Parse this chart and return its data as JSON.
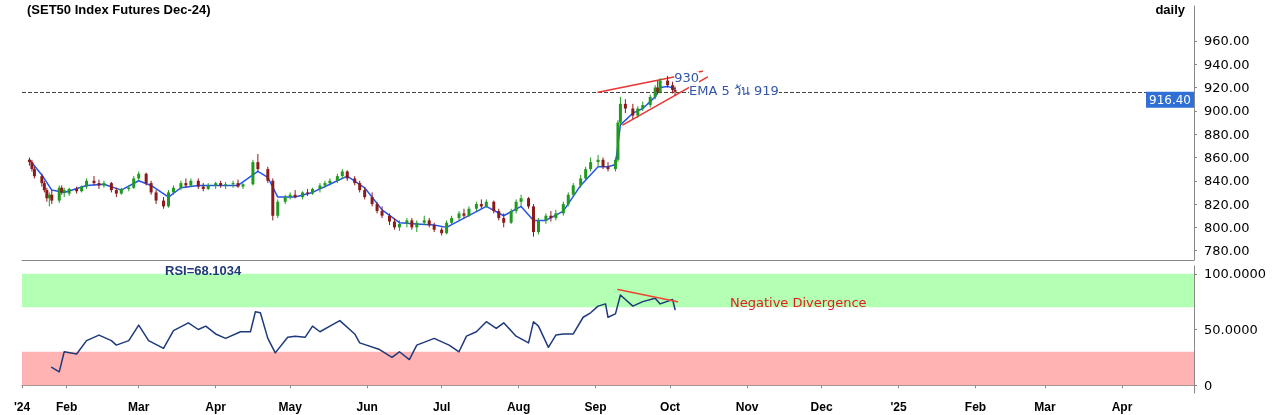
{
  "chart_data": [
    {
      "type": "candlestick",
      "title": "(SET50 Index Futures Dec-24)",
      "subtitle": "daily",
      "xlim": [
        "2024-01-14",
        "2025-04-30"
      ],
      "ylim": [
        772,
        990
      ],
      "yticks": [
        {
          "value": 780,
          "label": "780.00"
        },
        {
          "value": 800,
          "label": "800.00"
        },
        {
          "value": 820,
          "label": "820.00"
        },
        {
          "value": 840,
          "label": "840.00"
        },
        {
          "value": 860,
          "label": "860.00"
        },
        {
          "value": 880,
          "label": "880.00"
        },
        {
          "value": 900,
          "label": "900.00"
        },
        {
          "value": 920,
          "label": "920.00"
        },
        {
          "value": 940,
          "label": "940.00"
        },
        {
          "value": 960,
          "label": "960.00"
        }
      ],
      "tick_labels": "y",
      "grid": false,
      "marker": "none",
      "ref_lines": [
        {
          "axis": "y",
          "value": 916.4,
          "label": "916.40",
          "color": "#444444",
          "line_style": "dashed"
        }
      ],
      "annotations": [
        {
          "text": "930",
          "x": "2024-09-27",
          "y": 930
        },
        {
          "text": "EMA 5 วัน 919",
          "x": "2024-10-03",
          "y": 919
        }
      ],
      "series": [
        {
          "colors": [
            "#8b1a1a",
            "#8b1a1a",
            "#8b1a1a",
            "#8b1a1a",
            "#8b1a1a",
            "#8b1a1a",
            "#1f9a1f",
            "#8b1a1a",
            "#1f9a1f",
            "#8b1a1a",
            "#1f9a1f",
            "#1f9a1f",
            "#8b1a1a",
            "#1f9a1f",
            "#1f9a1f",
            "#8b1a1a",
            "#8b1a1a",
            "#1f9a1f",
            "#8b1a1a",
            "#8b1a1a",
            "#1f9a1f",
            "#1f9a1f",
            "#1f9a1f",
            "#1f9a1f",
            "#8b1a1a",
            "#8b1a1a",
            "#8b1a1a",
            "#8b1a1a",
            "#1f9a1f",
            "#1f9a1f",
            "#1f9a1f",
            "#8b1a1a",
            "#1f9a1f",
            "#8b1a1a",
            "#8b1a1a",
            "#1f9a1f",
            "#1f9a1f",
            "#8b1a1a",
            "#1f9a1f",
            "#1f9a1f",
            "#8b1a1a",
            "#1f9a1f",
            "#1f9a1f",
            "#8b1a1a",
            "#8b1a1a",
            "#8b1a1a",
            "#1f9a1f",
            "#1f9a1f",
            "#1f9a1f",
            "#8b1a1a",
            "#1f9a1f",
            "#8b1a1a",
            "#1f9a1f",
            "#1f9a1f",
            "#1f9a1f",
            "#1f9a1f",
            "#1f9a1f",
            "#1f9a1f",
            "#8b1a1a",
            "#8b1a1a",
            "#8b1a1a",
            "#8b1a1a",
            "#8b1a1a",
            "#8b1a1a",
            "#8b1a1a",
            "#8b1a1a",
            "#8b1a1a",
            "#1f9a1f",
            "#1f9a1f",
            "#8b1a1a",
            "#1f9a1f",
            "#1f9a1f",
            "#8b1a1a",
            "#8b1a1a",
            "#8b1a1a",
            "#1f9a1f",
            "#1f9a1f",
            "#1f9a1f",
            "#8b1a1a",
            "#1f9a1f",
            "#1f9a1f",
            "#8b1a1a",
            "#1f9a1f",
            "#8b1a1a",
            "#8b1a1a",
            "#8b1a1a",
            "#1f9a1f",
            "#1f9a1f",
            "#1f9a1f",
            "#8b1a1a",
            "#8b1a1a",
            "#1f9a1f",
            "#1f9a1f",
            "#8b1a1a",
            "#1f9a1f",
            "#1f9a1f",
            "#1f9a1f",
            "#1f9a1f",
            "#1f9a1f",
            "#1f9a1f",
            "#1f9a1f",
            "#1f9a1f",
            "#8b1a1a",
            "#8b1a1a",
            "#1f9a1f",
            "#1f9a1f",
            "#1f9a1f",
            "#8b1a1a",
            "#8b1a1a",
            "#1f9a1f",
            "#1f9a1f",
            "#1f9a1f",
            "#1f9a1f",
            "#8b1a1a",
            "#1f9a1f",
            "#8b1a1a",
            "#8b1a1a",
            "#8b1a1a"
          ],
          "x": [
            "2024-01-17",
            "2024-01-18",
            "2024-01-19",
            "2024-01-22",
            "2024-01-23",
            "2024-01-24",
            "2024-01-25",
            "2024-01-26",
            "2024-01-29",
            "2024-01-30",
            "2024-01-31",
            "2024-02-02",
            "2024-02-05",
            "2024-02-07",
            "2024-02-09",
            "2024-02-12",
            "2024-02-14",
            "2024-02-16",
            "2024-02-19",
            "2024-02-21",
            "2024-02-23",
            "2024-02-26",
            "2024-02-28",
            "2024-03-01",
            "2024-03-04",
            "2024-03-06",
            "2024-03-08",
            "2024-03-11",
            "2024-03-13",
            "2024-03-15",
            "2024-03-18",
            "2024-03-20",
            "2024-03-22",
            "2024-03-25",
            "2024-03-27",
            "2024-03-29",
            "2024-04-01",
            "2024-04-03",
            "2024-04-05",
            "2024-04-08",
            "2024-04-10",
            "2024-04-12",
            "2024-04-16",
            "2024-04-18",
            "2024-04-22",
            "2024-04-24",
            "2024-04-26",
            "2024-04-29",
            "2024-05-01",
            "2024-05-03",
            "2024-05-06",
            "2024-05-08",
            "2024-05-10",
            "2024-05-13",
            "2024-05-15",
            "2024-05-17",
            "2024-05-20",
            "2024-05-22",
            "2024-05-24",
            "2024-05-27",
            "2024-05-29",
            "2024-05-31",
            "2024-06-03",
            "2024-06-05",
            "2024-06-07",
            "2024-06-10",
            "2024-06-12",
            "2024-06-14",
            "2024-06-17",
            "2024-06-19",
            "2024-06-21",
            "2024-06-24",
            "2024-06-26",
            "2024-06-28",
            "2024-07-01",
            "2024-07-03",
            "2024-07-05",
            "2024-07-08",
            "2024-07-10",
            "2024-07-12",
            "2024-07-15",
            "2024-07-17",
            "2024-07-19",
            "2024-07-22",
            "2024-07-24",
            "2024-07-26",
            "2024-07-29",
            "2024-07-31",
            "2024-08-02",
            "2024-08-05",
            "2024-08-07",
            "2024-08-09",
            "2024-08-12",
            "2024-08-14",
            "2024-08-16",
            "2024-08-19",
            "2024-08-21",
            "2024-08-23",
            "2024-08-26",
            "2024-08-28",
            "2024-08-30",
            "2024-09-02",
            "2024-09-04",
            "2024-09-06",
            "2024-09-09",
            "2024-09-10",
            "2024-09-11",
            "2024-09-13",
            "2024-09-16",
            "2024-09-18",
            "2024-09-20",
            "2024-09-23",
            "2024-09-25",
            "2024-09-26",
            "2024-09-27",
            "2024-09-30",
            "2024-10-02",
            "2024-10-03"
          ],
          "ohlc": [
            [
              858,
              860,
              853,
              856
            ],
            [
              856,
              858,
              848,
              850
            ],
            [
              850,
              852,
              842,
              844
            ],
            [
              844,
              846,
              835,
              838
            ],
            [
              838,
              840,
              830,
              832
            ],
            [
              832,
              834,
              822,
              825
            ],
            [
              825,
              830,
              818,
              828
            ],
            [
              828,
              832,
              820,
              823
            ],
            [
              823,
              836,
              821,
              834
            ],
            [
              834,
              836,
              828,
              830
            ],
            [
              830,
              834,
              826,
              832
            ],
            [
              829,
              834,
              827,
              833
            ],
            [
              833,
              835,
              829,
              831
            ],
            [
              831,
              836,
              830,
              835
            ],
            [
              835,
              842,
              833,
              840
            ],
            [
              840,
              844,
              836,
              838
            ],
            [
              838,
              841,
              833,
              836
            ],
            [
              836,
              840,
              834,
              838
            ],
            [
              838,
              839,
              830,
              832
            ],
            [
              832,
              834,
              826,
              829
            ],
            [
              829,
              834,
              828,
              833
            ],
            [
              833,
              836,
              831,
              834
            ],
            [
              834,
              844,
              833,
              842
            ],
            [
              842,
              848,
              840,
              846
            ],
            [
              846,
              847,
              836,
              838
            ],
            [
              838,
              840,
              828,
              830
            ],
            [
              830,
              832,
              820,
              823
            ],
            [
              823,
              826,
              816,
              818
            ],
            [
              818,
              832,
              817,
              830
            ],
            [
              830,
              836,
              828,
              834
            ],
            [
              834,
              840,
              832,
              838
            ],
            [
              838,
              842,
              834,
              836
            ],
            [
              836,
              842,
              835,
              840
            ],
            [
              840,
              842,
              833,
              835
            ],
            [
              835,
              838,
              831,
              833
            ],
            [
              833,
              838,
              832,
              836
            ],
            [
              836,
              839,
              833,
              838
            ],
            [
              838,
              840,
              834,
              836
            ],
            [
              836,
              839,
              833,
              837
            ],
            [
              837,
              840,
              834,
              838
            ],
            [
              838,
              841,
              834,
              835
            ],
            [
              835,
              838,
              833,
              837
            ],
            [
              837,
              858,
              836,
              856
            ],
            [
              856,
              863,
              848,
              850
            ],
            [
              850,
              852,
              838,
              840
            ],
            [
              840,
              842,
              806,
              810
            ],
            [
              810,
              824,
              808,
              822
            ],
            [
              822,
              828,
              820,
              826
            ],
            [
              826,
              830,
              824,
              828
            ],
            [
              828,
              832,
              825,
              826
            ],
            [
              826,
              831,
              824,
              830
            ],
            [
              830,
              833,
              827,
              829
            ],
            [
              829,
              834,
              828,
              833
            ],
            [
              833,
              838,
              830,
              836
            ],
            [
              836,
              840,
              834,
              838
            ],
            [
              838,
              842,
              836,
              840
            ],
            [
              840,
              846,
              838,
              844
            ],
            [
              844,
              850,
              842,
              848
            ],
            [
              848,
              849,
              840,
              842
            ],
            [
              842,
              844,
              836,
              838
            ],
            [
              838,
              840,
              830,
              832
            ],
            [
              832,
              834,
              824,
              826
            ],
            [
              826,
              830,
              818,
              820
            ],
            [
              820,
              822,
              812,
              814
            ],
            [
              814,
              818,
              808,
              810
            ],
            [
              810,
              812,
              802,
              805
            ],
            [
              805,
              808,
              798,
              800
            ],
            [
              800,
              806,
              797,
              803
            ],
            [
              803,
              808,
              800,
              806
            ],
            [
              806,
              808,
              798,
              800
            ],
            [
              800,
              806,
              796,
              804
            ],
            [
              804,
              810,
              802,
              806
            ],
            [
              806,
              808,
              800,
              802
            ],
            [
              802,
              804,
              796,
              798
            ],
            [
              798,
              800,
              793,
              795
            ],
            [
              795,
              806,
              794,
              804
            ],
            [
              804,
              810,
              802,
              808
            ],
            [
              808,
              814,
              806,
              812
            ],
            [
              812,
              816,
              808,
              810
            ],
            [
              810,
              818,
              809,
              816
            ],
            [
              816,
              822,
              814,
              820
            ],
            [
              820,
              824,
              816,
              818
            ],
            [
              818,
              824,
              817,
              822
            ],
            [
              822,
              823,
              812,
              814
            ],
            [
              814,
              816,
              806,
              808
            ],
            [
              808,
              812,
              800,
              804
            ],
            [
              804,
              816,
              803,
              814
            ],
            [
              814,
              824,
              812,
              822
            ],
            [
              822,
              828,
              818,
              825
            ],
            [
              825,
              826,
              816,
              818
            ],
            [
              818,
              820,
              792,
              796
            ],
            [
              796,
              808,
              794,
              806
            ],
            [
              806,
              812,
              803,
              810
            ],
            [
              810,
              814,
              805,
              808
            ],
            [
              808,
              815,
              806,
              812
            ],
            [
              812,
              822,
              810,
              820
            ],
            [
              820,
              830,
              818,
              828
            ],
            [
              828,
              838,
              826,
              836
            ],
            [
              836,
              845,
              834,
              842
            ],
            [
              842,
              852,
              840,
              850
            ],
            [
              850,
              860,
              848,
              856
            ],
            [
              856,
              862,
              852,
              858
            ],
            [
              858,
              860,
              850,
              852
            ],
            [
              852,
              856,
              848,
              850
            ],
            [
              850,
              860,
              848,
              858
            ],
            [
              858,
              892,
              856,
              890
            ],
            [
              890,
              912,
              888,
              906
            ],
            [
              906,
              910,
              898,
              902
            ],
            [
              902,
              906,
              893,
              896
            ],
            [
              896,
              904,
              894,
              902
            ],
            [
              902,
              908,
              900,
              905
            ],
            [
              905,
              914,
              903,
              912
            ],
            [
              912,
              922,
              910,
              920
            ],
            [
              920,
              926,
              914,
              916
            ],
            [
              916,
              928,
              915,
              926
            ],
            [
              926,
              930,
              920,
              922
            ],
            [
              922,
              925,
              915,
              918
            ],
            [
              918,
              921,
              913,
              916.4
            ]
          ]
        },
        {
          "type": "line",
          "color": "#2255ee",
          "x": [
            "2024-01-17",
            "2024-01-22",
            "2024-01-26",
            "2024-01-31",
            "2024-02-09",
            "2024-02-16",
            "2024-02-23",
            "2024-03-01",
            "2024-03-06",
            "2024-03-13",
            "2024-03-18",
            "2024-03-25",
            "2024-04-01",
            "2024-04-10",
            "2024-04-16",
            "2024-04-18",
            "2024-04-22",
            "2024-04-26",
            "2024-05-03",
            "2024-05-10",
            "2024-05-17",
            "2024-05-24",
            "2024-05-31",
            "2024-06-07",
            "2024-06-14",
            "2024-06-21",
            "2024-06-28",
            "2024-07-03",
            "2024-07-10",
            "2024-07-19",
            "2024-07-26",
            "2024-08-02",
            "2024-08-07",
            "2024-08-12",
            "2024-08-19",
            "2024-08-26",
            "2024-09-02",
            "2024-09-06",
            "2024-09-09",
            "2024-09-11",
            "2024-09-16",
            "2024-09-20",
            "2024-09-25",
            "2024-09-27",
            "2024-09-30",
            "2024-10-03"
          ],
          "values": [
            858,
            845,
            832,
            830,
            836,
            837,
            832,
            840,
            836,
            826,
            834,
            836,
            836,
            836,
            845,
            848,
            843,
            826,
            826,
            830,
            837,
            844,
            834,
            815,
            804,
            803,
            802,
            800,
            808,
            818,
            810,
            818,
            806,
            806,
            814,
            836,
            852,
            852,
            854,
            888,
            898,
            902,
            912,
            920,
            921,
            919
          ]
        },
        {
          "type": "line",
          "color": "#ee3333",
          "x": [
            "2024-09-02",
            "2024-10-14"
          ],
          "values": [
            916,
            934
          ]
        },
        {
          "type": "line",
          "color": "#ee3333",
          "x": [
            "2024-09-12",
            "2024-10-16"
          ],
          "values": [
            888,
            929
          ]
        }
      ]
    },
    {
      "type": "line",
      "title": "RSI=68.1034",
      "xlim": [
        "2024-01-14",
        "2025-04-30"
      ],
      "xticks": [
        {
          "value": "2024-01-14",
          "label": "'24"
        },
        {
          "value": "2024-02",
          "label": "Feb"
        },
        {
          "value": "2024-03",
          "label": "Mar"
        },
        {
          "value": "2024-04",
          "label": "Apr"
        },
        {
          "value": "2024-05",
          "label": "May"
        },
        {
          "value": "2024-06",
          "label": "Jun"
        },
        {
          "value": "2024-07",
          "label": "Jul"
        },
        {
          "value": "2024-08",
          "label": "Aug"
        },
        {
          "value": "2024-09",
          "label": "Sep"
        },
        {
          "value": "2024-10",
          "label": "Oct"
        },
        {
          "value": "2024-11",
          "label": "Nov"
        },
        {
          "value": "2024-12",
          "label": "Dec"
        },
        {
          "value": "2025-01",
          "label": "'25"
        },
        {
          "value": "2025-02",
          "label": "Feb"
        },
        {
          "value": "2025-03",
          "label": "Mar"
        },
        {
          "value": "2025-04",
          "label": "Apr"
        }
      ],
      "ylim": [
        -7,
        107
      ],
      "yticks": [
        0,
        {
          "value": 50,
          "label": "50.0000"
        },
        {
          "value": 100,
          "label": "100.0000"
        }
      ],
      "grid": false,
      "marker": "none",
      "bands": [
        {
          "axis": "y",
          "from": 70,
          "to": 100,
          "color": "#b3ffb3"
        },
        {
          "axis": "y",
          "from": 0,
          "to": 30,
          "color": "#ffb3b3"
        }
      ],
      "annotations": [
        "Negative Divergence"
      ],
      "series": [
        {
          "color": "#1f3a7a",
          "x": [
            "2024-01-26",
            "2024-01-29",
            "2024-01-31",
            "2024-02-05",
            "2024-02-09",
            "2024-02-14",
            "2024-02-19",
            "2024-02-21",
            "2024-02-26",
            "2024-03-01",
            "2024-03-05",
            "2024-03-11",
            "2024-03-15",
            "2024-03-21",
            "2024-03-25",
            "2024-03-28",
            "2024-04-01",
            "2024-04-05",
            "2024-04-11",
            "2024-04-15",
            "2024-04-17",
            "2024-04-19",
            "2024-04-22",
            "2024-04-25",
            "2024-04-30",
            "2024-05-03",
            "2024-05-07",
            "2024-05-10",
            "2024-05-13",
            "2024-05-17",
            "2024-05-21",
            "2024-05-27",
            "2024-05-29",
            "2024-06-06",
            "2024-06-11",
            "2024-06-14",
            "2024-06-18",
            "2024-06-21",
            "2024-06-28",
            "2024-07-04",
            "2024-07-08",
            "2024-07-11",
            "2024-07-15",
            "2024-07-19",
            "2024-07-23",
            "2024-07-26",
            "2024-07-31",
            "2024-08-05",
            "2024-08-07",
            "2024-08-09",
            "2024-08-13",
            "2024-08-16",
            "2024-08-19",
            "2024-08-23",
            "2024-08-27",
            "2024-08-30",
            "2024-09-02",
            "2024-09-05",
            "2024-09-06",
            "2024-09-09",
            "2024-09-11",
            "2024-09-16",
            "2024-09-20",
            "2024-09-25",
            "2024-09-27",
            "2024-10-02",
            "2024-10-03"
          ],
          "values": [
            16,
            12,
            30,
            28,
            40,
            45,
            40,
            36,
            40,
            54,
            40,
            33,
            49,
            56,
            50,
            53,
            46,
            42,
            48,
            48,
            66,
            65,
            42,
            29,
            43,
            44,
            43,
            53,
            48,
            53,
            58,
            46,
            38,
            32,
            25,
            30,
            23,
            36,
            42,
            36,
            30,
            44,
            48,
            57,
            51,
            56,
            44,
            38,
            57,
            53,
            34,
            45,
            46,
            46,
            61,
            65,
            71,
            73,
            61,
            64,
            81,
            71,
            75,
            78,
            73,
            77,
            68
          ]
        },
        {
          "type": "line",
          "color": "#ee4433",
          "x": [
            "2024-09-10",
            "2024-10-04"
          ],
          "values": [
            86,
            75
          ]
        }
      ]
    }
  ]
}
